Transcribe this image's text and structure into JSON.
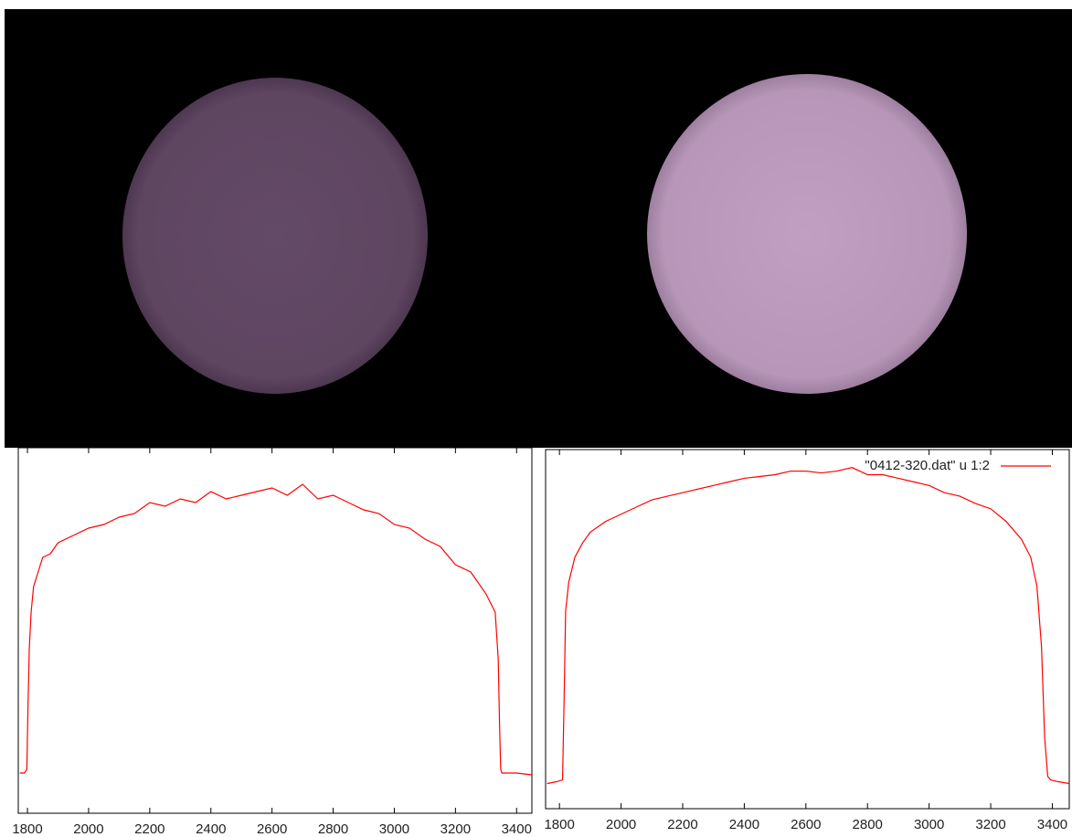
{
  "chart_data": [
    {
      "type": "line",
      "xlim": [
        1770,
        3450
      ],
      "xticks": [
        1800,
        2000,
        2200,
        2400,
        2600,
        2800,
        3000,
        3200,
        3400
      ],
      "ylim": [
        0,
        100
      ],
      "x": [
        1775,
        1790,
        1798,
        1802,
        1806,
        1812,
        1820,
        1835,
        1850,
        1875,
        1900,
        1950,
        2000,
        2050,
        2100,
        2150,
        2200,
        2250,
        2300,
        2350,
        2400,
        2450,
        2500,
        2550,
        2600,
        2650,
        2700,
        2750,
        2800,
        2850,
        2900,
        2950,
        3000,
        3050,
        3100,
        3150,
        3200,
        3250,
        3300,
        3330,
        3340,
        3344,
        3348,
        3352,
        3360,
        3400,
        3450
      ],
      "series": [
        {
          "color": "#ff0000",
          "values": [
            11,
            11,
            12,
            30,
            45,
            55,
            62,
            66,
            70,
            71,
            74,
            76,
            78,
            79,
            81,
            82,
            85,
            84,
            86,
            85,
            88,
            86,
            87,
            88,
            89,
            87,
            90,
            86,
            87,
            85,
            83,
            82,
            79,
            78,
            75,
            73,
            68,
            66,
            60,
            55,
            42,
            25,
            12,
            11,
            11,
            11,
            10.5
          ]
        }
      ]
    },
    {
      "type": "line",
      "xlim": [
        1755,
        3455
      ],
      "xticks": [
        1800,
        2000,
        2200,
        2400,
        2600,
        2800,
        3000,
        3200,
        3400
      ],
      "ylim": [
        0,
        100
      ],
      "legend": "top-right",
      "x": [
        1760,
        1790,
        1810,
        1815,
        1820,
        1830,
        1850,
        1875,
        1900,
        1950,
        2000,
        2050,
        2100,
        2150,
        2200,
        2250,
        2300,
        2350,
        2400,
        2450,
        2500,
        2550,
        2600,
        2650,
        2700,
        2750,
        2800,
        2850,
        2900,
        2950,
        3000,
        3050,
        3100,
        3150,
        3200,
        3250,
        3300,
        3330,
        3350,
        3365,
        3375,
        3385,
        3395,
        3420,
        3455
      ],
      "series": [
        {
          "name": "\"0412-320.dat\" u 1:2",
          "color": "#ff0000",
          "values": [
            7,
            7.5,
            8,
            30,
            55,
            63,
            70,
            74,
            77,
            80,
            82,
            84,
            86,
            87,
            88,
            89,
            90,
            91,
            92,
            92.5,
            93,
            94,
            94,
            93.5,
            94,
            95,
            93,
            93,
            92,
            91,
            90,
            88,
            87,
            85,
            83.5,
            80,
            75,
            70,
            62,
            45,
            20,
            9,
            8,
            7.5,
            7
          ]
        }
      ]
    }
  ]
}
